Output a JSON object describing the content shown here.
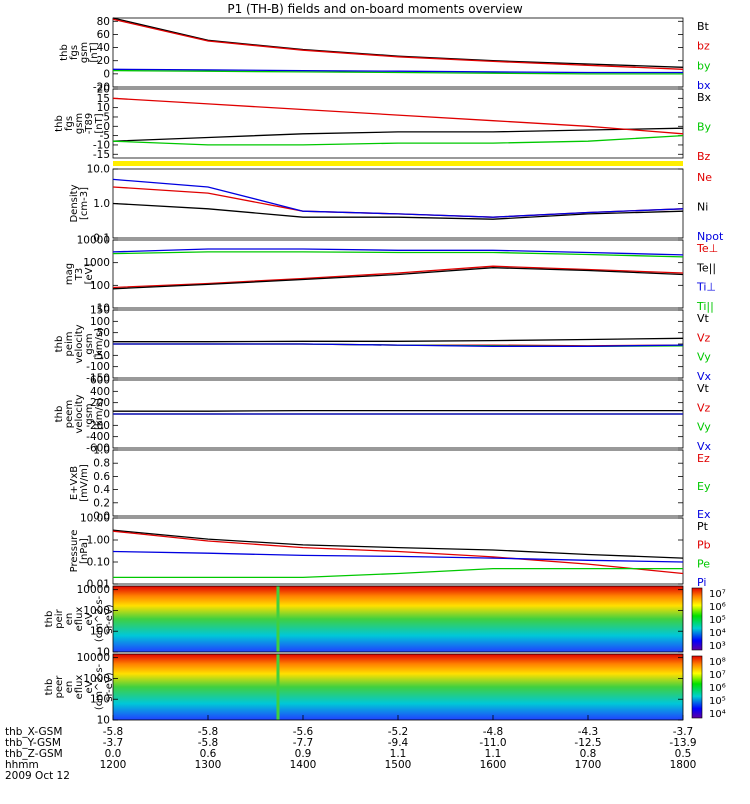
{
  "title": "P1 (TH-B) fields and on-board moments overview",
  "colors": {
    "black": "#000000",
    "red": "#e00000",
    "green": "#00c800",
    "blue": "#0000e0",
    "yellow": "#ffee00"
  },
  "panels": [
    {
      "id": "fgs-gsm",
      "ylabel": [
        "thb",
        "fgs",
        "gsm",
        "[nT]"
      ],
      "yticks": [
        "80",
        "60",
        "40",
        "20",
        "0",
        "-20"
      ],
      "legend": [
        {
          "text": "Bt",
          "color": "black"
        },
        {
          "text": "bz",
          "color": "red"
        },
        {
          "text": "by",
          "color": "green"
        },
        {
          "text": "bx",
          "color": "blue"
        }
      ]
    },
    {
      "id": "fgs-dipole",
      "ylabel": [
        "thb",
        "fgs",
        "gsm",
        "-T89",
        "[nT]"
      ],
      "yticks": [
        "20",
        "15",
        "10",
        "5",
        "0",
        "-5",
        "-10",
        "-15"
      ],
      "legend": [
        {
          "text": "Bx",
          "color": "black"
        },
        {
          "text": "By",
          "color": "green"
        },
        {
          "text": "Bz",
          "color": "red"
        }
      ]
    },
    {
      "id": "density",
      "ylabel": [
        "Density",
        "[cm-3]"
      ],
      "yticks": [
        "10.0",
        "1.0",
        "0.1"
      ],
      "legend": [
        {
          "text": "Ne",
          "color": "red"
        },
        {
          "text": "Ni",
          "color": "black"
        },
        {
          "text": "Npot",
          "color": "blue"
        }
      ]
    },
    {
      "id": "temperature",
      "ylabel": [
        "mag",
        "T3",
        "[eV]"
      ],
      "yticks": [
        "10000",
        "1000",
        "100",
        "10"
      ],
      "legend": [
        {
          "text": "Te⊥",
          "color": "red"
        },
        {
          "text": "Te||",
          "color": "black"
        },
        {
          "text": "Ti⊥",
          "color": "blue"
        },
        {
          "text": "Ti||",
          "color": "green"
        }
      ]
    },
    {
      "id": "peim-velocity",
      "ylabel": [
        "thb",
        "peim",
        "velocity",
        "gsm",
        "[km/s]"
      ],
      "yticks": [
        "150",
        "100",
        "50",
        "0",
        "-50",
        "-100",
        "-150"
      ],
      "legend": [
        {
          "text": "Vt",
          "color": "black"
        },
        {
          "text": "Vz",
          "color": "red"
        },
        {
          "text": "Vy",
          "color": "green"
        },
        {
          "text": "Vx",
          "color": "blue"
        }
      ]
    },
    {
      "id": "peem-velocity",
      "ylabel": [
        "thb",
        "peem",
        "velocity",
        "gsm",
        "[km/s]"
      ],
      "yticks": [
        "600",
        "400",
        "200",
        "0",
        "-200",
        "-400",
        "-600"
      ],
      "legend": [
        {
          "text": "Vt",
          "color": "black"
        },
        {
          "text": "Vz",
          "color": "red"
        },
        {
          "text": "Vy",
          "color": "green"
        },
        {
          "text": "Vx",
          "color": "blue"
        }
      ]
    },
    {
      "id": "efield",
      "ylabel": [
        "E+VxB",
        "[mV/m]"
      ],
      "yticks": [
        "1.0",
        "0.8",
        "0.6",
        "0.4",
        "0.2",
        "0.0"
      ],
      "legend": [
        {
          "text": "Ez",
          "color": "red"
        },
        {
          "text": "Ey",
          "color": "green"
        },
        {
          "text": "Ex",
          "color": "blue"
        }
      ]
    },
    {
      "id": "pressure",
      "ylabel": [
        "Pressure",
        "[nPa]"
      ],
      "yticks": [
        "10.00",
        "1.00",
        "0.10",
        "0.01"
      ],
      "legend": [
        {
          "text": "Pt",
          "color": "black"
        },
        {
          "text": "Pb",
          "color": "red"
        },
        {
          "text": "Pe",
          "color": "green"
        },
        {
          "text": "Pi",
          "color": "blue"
        }
      ]
    },
    {
      "id": "peir-spectrogram",
      "ylabel": [
        "thb",
        "peir",
        "en",
        "eflux",
        "eV",
        "(cm^2-s-",
        "sr-eV)"
      ],
      "yticks": [
        "10000",
        "1000",
        "100",
        "10"
      ],
      "cbar": [
        "10⁷",
        "10⁶",
        "10⁵",
        "10⁴",
        "10³"
      ]
    },
    {
      "id": "peer-spectrogram",
      "ylabel": [
        "thb",
        "peer",
        "en",
        "eflux",
        "eV",
        "(cm^2-s-",
        "sr-eV)"
      ],
      "yticks": [
        "10000",
        "1000",
        "100",
        "10"
      ],
      "cbar": [
        "10⁸",
        "10⁷",
        "10⁶",
        "10⁵",
        "10⁴"
      ]
    }
  ],
  "xaxis": {
    "rows": [
      {
        "label": "thb_X-GSM",
        "values": [
          "-5.8",
          "-5.8",
          "-5.6",
          "-5.2",
          "-4.8",
          "-4.3",
          "-3.7"
        ]
      },
      {
        "label": "thb_Y-GSM",
        "values": [
          "-3.7",
          "-5.8",
          "-7.7",
          "-9.4",
          "-11.0",
          "-12.5",
          "-13.9"
        ]
      },
      {
        "label": "thb_Z-GSM",
        "values": [
          "0.0",
          "0.6",
          "0.9",
          "1.1",
          "1.1",
          "0.8",
          "0.5"
        ]
      },
      {
        "label": "hhmm",
        "values": [
          "1200",
          "1300",
          "1400",
          "1500",
          "1600",
          "1700",
          "1800"
        ]
      }
    ],
    "date": "2009 Oct 12"
  },
  "chart_data": {
    "type": "line",
    "title": "P1 (TH-B) fields and on-board moments overview",
    "x": [
      "1200",
      "1300",
      "1400",
      "1500",
      "1600",
      "1700",
      "1800"
    ],
    "panels": [
      {
        "name": "fgs gsm",
        "ylim": [
          -20,
          85
        ],
        "series": [
          {
            "name": "Bt",
            "values": [
              85,
              51,
              37,
              27,
              20,
              15,
              10
            ]
          },
          {
            "name": "bz",
            "values": [
              83,
              50,
              36,
              26,
              19,
              13,
              7
            ]
          },
          {
            "name": "by",
            "values": [
              5,
              4,
              3,
              2,
              1,
              0,
              0
            ]
          },
          {
            "name": "bx",
            "values": [
              7,
              6,
              5,
              4,
              3,
              2,
              2
            ]
          }
        ]
      },
      {
        "name": "fgs gsm -T89",
        "ylim": [
          -17,
          20
        ],
        "series": [
          {
            "name": "Bx",
            "values": [
              -8,
              -6,
              -4,
              -3,
              -3,
              -2,
              -1
            ]
          },
          {
            "name": "By",
            "values": [
              -8,
              -10,
              -10,
              -9,
              -9,
              -8,
              -5
            ]
          },
          {
            "name": "Bz",
            "values": [
              15,
              12,
              9,
              6,
              3,
              0,
              -4
            ]
          }
        ]
      },
      {
        "name": "Density",
        "ylim": [
          0.1,
          10
        ],
        "series": [
          {
            "name": "Ne",
            "values": [
              3,
              2,
              0.6,
              0.5,
              0.4,
              0.55,
              0.7
            ]
          },
          {
            "name": "Ni",
            "values": [
              1,
              0.7,
              0.4,
              0.4,
              0.35,
              0.5,
              0.6
            ]
          },
          {
            "name": "Npot",
            "values": [
              5,
              3,
              0.6,
              0.5,
              0.4,
              0.55,
              0.7
            ]
          }
        ]
      },
      {
        "name": "T",
        "ylim": [
          10,
          10000
        ],
        "series": [
          {
            "name": "Te⊥",
            "values": [
              80,
              120,
              200,
              350,
              700,
              500,
              350
            ]
          },
          {
            "name": "Te||",
            "values": [
              70,
              110,
              180,
              300,
              600,
              450,
              300
            ]
          },
          {
            "name": "Ti⊥",
            "values": [
              3000,
              4000,
              4000,
              3500,
              3500,
              2800,
              2200
            ]
          },
          {
            "name": "Ti||",
            "values": [
              2500,
              3000,
              3000,
              2800,
              2800,
              2300,
              1800
            ]
          }
        ]
      },
      {
        "name": "peim velocity",
        "ylim": [
          -150,
          150
        ],
        "series": [
          {
            "name": "Vt",
            "values": [
              10,
              10,
              12,
              12,
              15,
              20,
              25
            ]
          },
          {
            "name": "Vz",
            "values": [
              0,
              0,
              0,
              -5,
              -5,
              -8,
              -5
            ]
          },
          {
            "name": "Vy",
            "values": [
              0,
              0,
              0,
              -5,
              -8,
              -10,
              -8
            ]
          },
          {
            "name": "Vx",
            "values": [
              0,
              0,
              0,
              -5,
              -10,
              -10,
              -5
            ]
          }
        ]
      },
      {
        "name": "peem velocity",
        "ylim": [
          -600,
          600
        ],
        "series": [
          {
            "name": "Vt",
            "values": [
              50,
              50,
              60,
              60,
              60,
              60,
              60
            ]
          },
          {
            "name": "Vz",
            "values": [
              0,
              0,
              0,
              0,
              0,
              0,
              0
            ]
          },
          {
            "name": "Vy",
            "values": [
              0,
              0,
              0,
              0,
              0,
              0,
              0
            ]
          },
          {
            "name": "Vx",
            "values": [
              0,
              0,
              0,
              0,
              0,
              0,
              0
            ]
          }
        ]
      },
      {
        "name": "Pressure",
        "ylim": [
          0.01,
          10
        ],
        "series": [
          {
            "name": "Pt",
            "values": [
              2.8,
              1.1,
              0.6,
              0.45,
              0.35,
              0.22,
              0.15
            ]
          },
          {
            "name": "Pb",
            "values": [
              2.5,
              0.9,
              0.45,
              0.3,
              0.17,
              0.08,
              0.03
            ]
          },
          {
            "name": "Pe",
            "values": [
              0.02,
              0.02,
              0.02,
              0.03,
              0.05,
              0.05,
              0.05
            ]
          },
          {
            "name": "Pi",
            "values": [
              0.3,
              0.25,
              0.2,
              0.18,
              0.15,
              0.12,
              0.1
            ]
          }
        ]
      }
    ]
  }
}
